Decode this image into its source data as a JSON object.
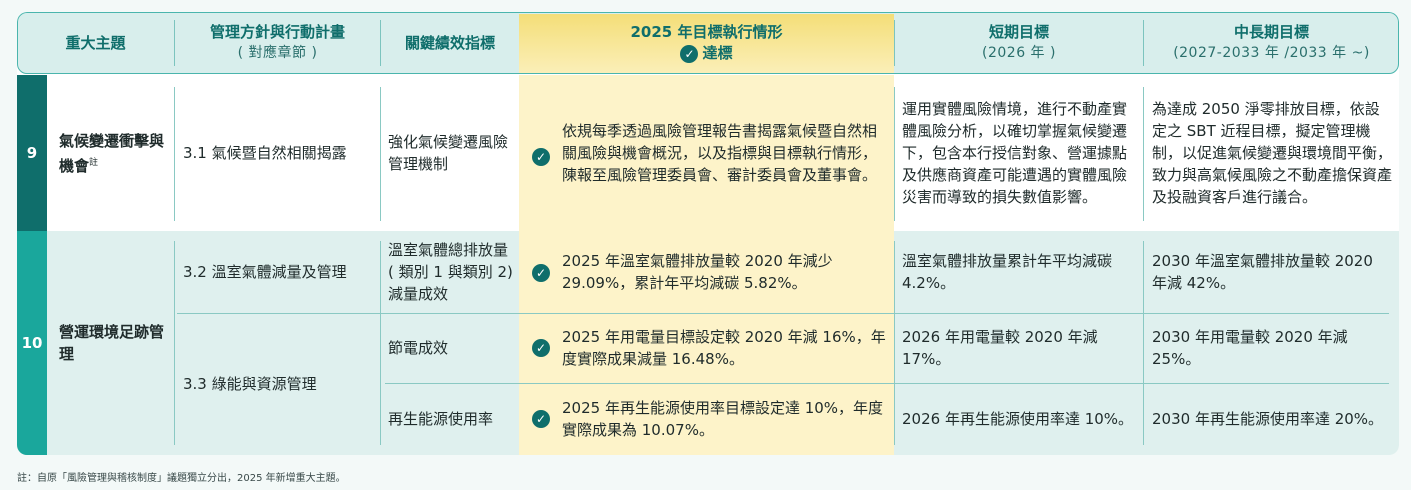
{
  "header": {
    "topic": "重大主題",
    "policy": "管理方針與行動計畫",
    "policy_sub": "( 對應章節 )",
    "kpi": "關鍵績效指標",
    "status": "2025 年目標執行情形",
    "status_sub": "達標",
    "short": "短期目標",
    "short_sub": "(2026 年 )",
    "long": "中長期目標",
    "long_sub": "(2027-2033 年 /2033 年 ~)"
  },
  "colors": {
    "teal_dark": "#0f6e6b",
    "teal_mid": "#1aa79c",
    "highlight": "#fdf3c9",
    "band": "#dff0ee"
  },
  "rows": {
    "r9": {
      "num": "9",
      "topic": "氣候變遷衝擊與機會",
      "topic_note": "註",
      "section": "3.1  氣候暨自然相關揭露",
      "kpi": "強化氣候變遷風險管理機制",
      "status": "依規每季透過風險管理報告書揭露氣候暨自然相關風險與機會概況，以及指標與目標執行情形，陳報至風險管理委員會、審計委員會及董事會。",
      "short": "運用實體風險情境，進行不動產實體風險分析，以確切掌握氣候變遷下，包含本行授信對象、營運據點及供應商資產可能遭遇的實體風險災害而導致的損失數值影響。",
      "long": "為達成 2050 淨零排放目標，依設定之 SBT 近程目標，擬定管理機制，以促進氣候變遷與環境間平衡，致力與高氣候風險之不動產擔保資產及投融資客戶進行議合。"
    },
    "r10": {
      "num": "10",
      "topic": "營運環境足跡管理",
      "section_a": "3.2  溫室氣體減量及管理",
      "section_b": "3.3  綠能與資源管理",
      "items": [
        {
          "kpi": "溫室氣體總排放量 ( 類別 1 與類別 2) 減量成效",
          "status": "2025 年溫室氣體排放量較 2020 年減少 29.09%，累計年平均減碳 5.82%。",
          "short": "溫室氣體排放量累計年平均減碳 4.2%。",
          "long": "2030 年溫室氣體排放量較 2020 年減 42%。"
        },
        {
          "kpi": "節電成效",
          "status": "2025 年用電量目標設定較 2020 年減 16%，年度實際成果減量 16.48%。",
          "short": "2026 年用電量較 2020 年減 17%。",
          "long": "2030 年用電量較 2020 年減 25%。"
        },
        {
          "kpi": "再生能源使用率",
          "status": "2025 年再生能源使用率目標設定達 10%，年度實際成果為 10.07%。",
          "short": "2026 年再生能源使用率達 10%。",
          "long": "2030 年再生能源使用率達 20%。"
        }
      ]
    }
  },
  "footnote": "註：自原「風險管理與稽核制度」議題獨立分出，2025 年新增重大主題。"
}
